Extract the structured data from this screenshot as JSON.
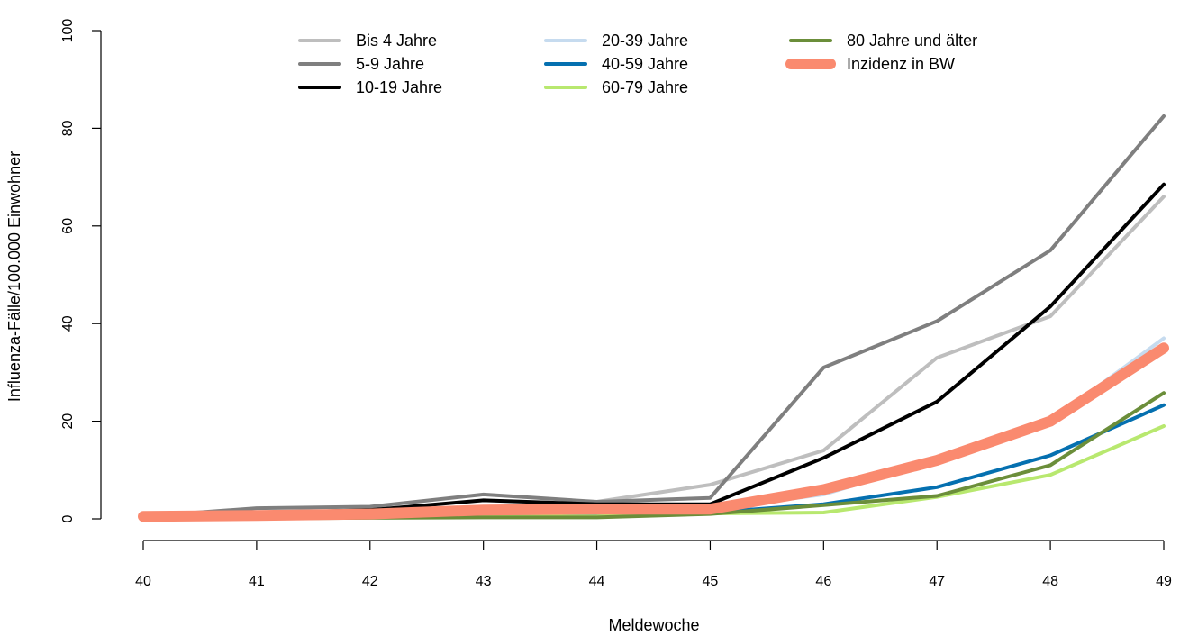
{
  "chart_data": {
    "type": "line",
    "title": "",
    "xlabel": "Meldewoche",
    "ylabel": "Influenza-Fälle/100.000 Einwohner",
    "x": [
      40,
      41,
      42,
      43,
      44,
      45,
      46,
      47,
      48,
      49
    ],
    "xticks": [
      "40",
      "41",
      "42",
      "43",
      "44",
      "45",
      "46",
      "47",
      "48",
      "49"
    ],
    "ylim": [
      0,
      100
    ],
    "yticks": [
      "0",
      "20",
      "40",
      "60",
      "80",
      "100"
    ],
    "grid": false,
    "legend_placement": "top",
    "series": [
      {
        "name": "Bis 4 Jahre",
        "color": "#bebebe",
        "width": 4,
        "values": [
          0.5,
          1.0,
          1.5,
          1.8,
          3.5,
          7.0,
          14.0,
          33.0,
          41.5,
          66.0
        ]
      },
      {
        "name": "5-9 Jahre",
        "color": "#7f7f7f",
        "width": 4,
        "values": [
          0.5,
          2.2,
          2.5,
          5.0,
          3.5,
          4.3,
          31.0,
          40.5,
          55.0,
          82.5
        ]
      },
      {
        "name": "10-19 Jahre",
        "color": "#000000",
        "width": 4,
        "values": [
          1.0,
          1.2,
          1.8,
          3.8,
          3.0,
          3.0,
          12.5,
          24.0,
          43.5,
          68.5
        ]
      },
      {
        "name": "20-39 Jahre",
        "color": "#c6dbef",
        "width": 4,
        "values": [
          0.5,
          0.7,
          1.0,
          1.5,
          1.5,
          2.0,
          5.0,
          12.0,
          20.0,
          37.0
        ]
      },
      {
        "name": "40-59 Jahre",
        "color": "#0570b0",
        "width": 4,
        "values": [
          0.3,
          0.4,
          0.5,
          0.6,
          0.7,
          1.3,
          3.0,
          6.5,
          13.0,
          23.3
        ]
      },
      {
        "name": "60-79 Jahre",
        "color": "#b8e86f",
        "width": 4,
        "values": [
          0.2,
          0.3,
          0.3,
          0.4,
          0.5,
          1.1,
          1.3,
          4.5,
          9.0,
          19.0
        ]
      },
      {
        "name": "80 Jahre und älter",
        "color": "#6b8e3a",
        "width": 4,
        "values": [
          0.1,
          0.1,
          0.2,
          0.3,
          0.3,
          1.0,
          2.8,
          4.7,
          11.0,
          25.8
        ]
      },
      {
        "name": "Inzidenz in BW",
        "color": "#fa8a6f",
        "width": 12,
        "values": [
          0.5,
          0.7,
          1.0,
          1.8,
          2.0,
          2.0,
          6.0,
          12.0,
          20.0,
          35.0
        ]
      }
    ]
  }
}
